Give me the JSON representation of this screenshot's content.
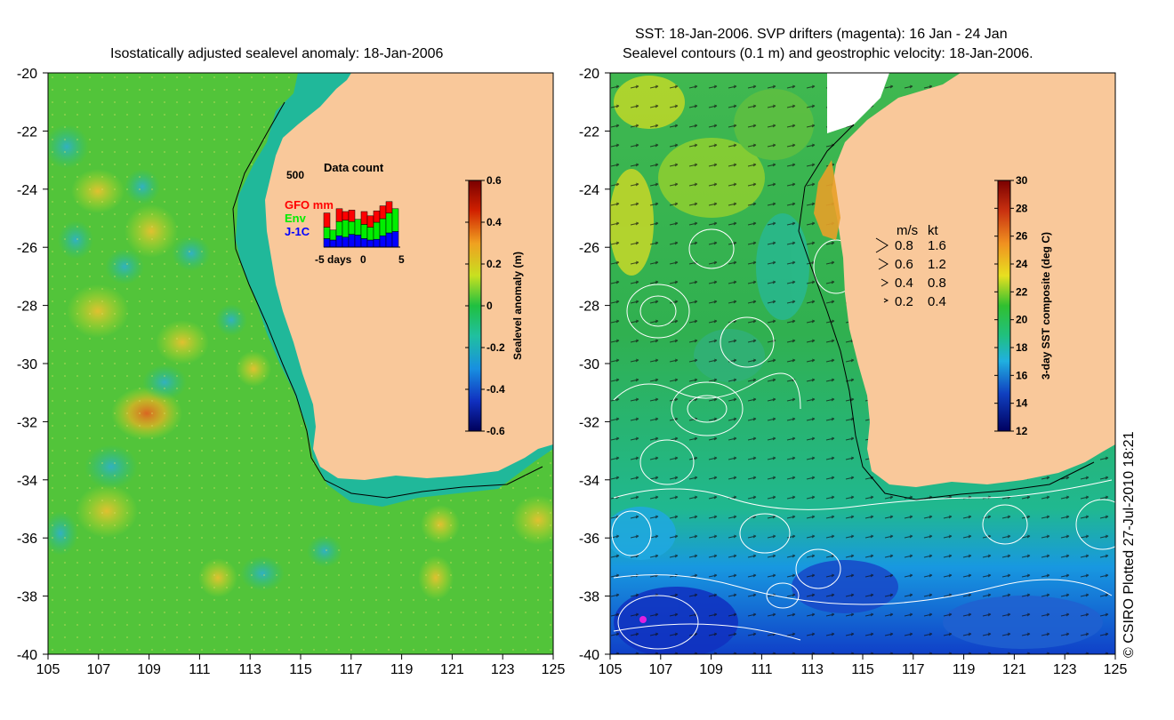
{
  "chart_data": [
    {
      "type": "heatmap",
      "title": "Isostatically adjusted sealevel anomaly: 18-Jan-2006",
      "x_ticks": [
        "105",
        "107",
        "109",
        "111",
        "113",
        "115",
        "117",
        "119",
        "121",
        "123",
        "125"
      ],
      "y_ticks": [
        "-20",
        "-22",
        "-24",
        "-26",
        "-28",
        "-30",
        "-32",
        "-34",
        "-36",
        "-38",
        "-40"
      ],
      "xlim": [
        105,
        125
      ],
      "ylim": [
        -40,
        -20
      ],
      "colorbar": {
        "label": "Sealevel anomaly (m)",
        "ticks": [
          "0.6",
          "0.4",
          "0.2",
          "0",
          "-0.2",
          "-0.4",
          "-0.6"
        ],
        "range": [
          -0.6,
          0.6
        ]
      },
      "inset": {
        "title": "Data count",
        "ymax_label": "500",
        "xlabel": "days",
        "x_ticks": [
          "-5",
          "0",
          "5"
        ],
        "legend": [
          {
            "name": "GFO mm",
            "color": "#ff0000"
          },
          {
            "name": "Env",
            "color": "#00ee00"
          },
          {
            "name": "J-1C",
            "color": "#0000ff"
          }
        ],
        "series": [
          {
            "name": "J-1C",
            "values": [
              60,
              50,
              80,
              70,
              90,
              85,
              60,
              50,
              55,
              80,
              100,
              110
            ]
          },
          {
            "name": "Env",
            "values": [
              80,
              70,
              100,
              120,
              90,
              110,
              100,
              90,
              120,
              120,
              140,
              160
            ]
          },
          {
            "name": "GFO mm",
            "values": [
              100,
              0,
              90,
              60,
              80,
              0,
              90,
              80,
              80,
              90,
              80,
              0
            ]
          }
        ],
        "max_value": 500
      }
    },
    {
      "type": "heatmap",
      "title_line1": "SST: 18-Jan-2006. SVP drifters (magenta): 16 Jan - 24 Jan",
      "title_line2": "Sealevel contours (0.1 m) and geostrophic velocity: 18-Jan-2006.",
      "x_ticks": [
        "105",
        "107",
        "109",
        "111",
        "113",
        "115",
        "117",
        "119",
        "121",
        "123",
        "125"
      ],
      "y_ticks": [
        "-20",
        "-22",
        "-24",
        "-26",
        "-28",
        "-30",
        "-32",
        "-34",
        "-36",
        "-38",
        "-40"
      ],
      "xlim": [
        105,
        125
      ],
      "ylim": [
        -40,
        -20
      ],
      "colorbar": {
        "label": "3-day SST composite (deg C)",
        "ticks": [
          "30",
          "28",
          "26",
          "24",
          "22",
          "20",
          "18",
          "16",
          "14",
          "12"
        ],
        "range": [
          12,
          30
        ]
      },
      "velocity_legend": {
        "header_ms": "m/s",
        "header_kt": "kt",
        "rows": [
          {
            "ms": "0.8",
            "kt": "1.6"
          },
          {
            "ms": "0.6",
            "kt": "1.2"
          },
          {
            "ms": "0.4",
            "kt": "0.8"
          },
          {
            "ms": "0.2",
            "kt": "0.4"
          }
        ]
      }
    }
  ],
  "credit": "© CSIRO Plotted 27-Jul-2010 18:21",
  "colors": {
    "land": "#f9c89a",
    "coast": "#000000"
  }
}
